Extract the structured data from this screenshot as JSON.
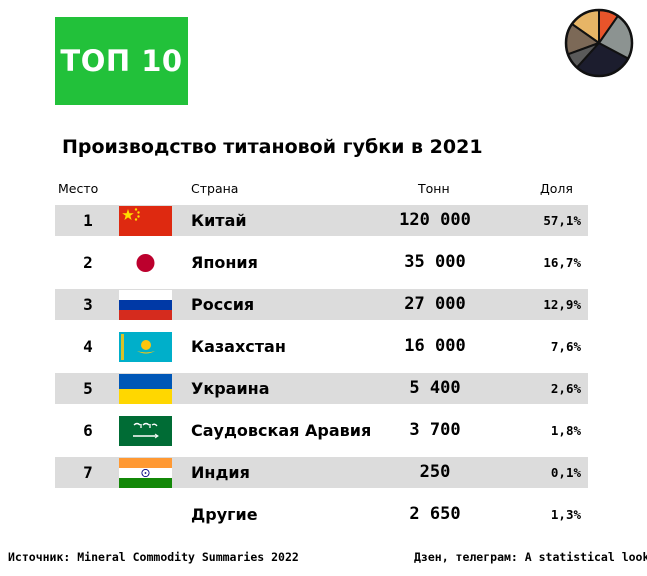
{
  "badge": {
    "label": "ТОП 10"
  },
  "logo_colors": [
    "#e8542a",
    "#e7b566",
    "#7c6957",
    "#5a5a5a",
    "#1c1d2e",
    "#8c9391"
  ],
  "chart_data": {
    "type": "table",
    "title": "Производство титановой губки в 2021",
    "columns": [
      "Место",
      "Страна",
      "Тонн",
      "Доля"
    ],
    "rows": [
      {
        "rank": "1",
        "country": "Китай",
        "flag": "china-flag-icon",
        "tons": "120 000",
        "share": "57,1%"
      },
      {
        "rank": "2",
        "country": "Япония",
        "flag": "japan-flag-icon",
        "tons": "35 000",
        "share": "16,7%"
      },
      {
        "rank": "3",
        "country": "Россия",
        "flag": "russia-flag-icon",
        "tons": "27 000",
        "share": "12,9%"
      },
      {
        "rank": "4",
        "country": "Казахстан",
        "flag": "kazakhstan-flag-icon",
        "tons": "16 000",
        "share": "7,6%"
      },
      {
        "rank": "5",
        "country": "Украина",
        "flag": "ukraine-flag-icon",
        "tons": "5 400",
        "share": "2,6%"
      },
      {
        "rank": "6",
        "country": "Саудовская Аравия",
        "flag": "saudi-arabia-flag-icon",
        "tons": "3 700",
        "share": "1,8%"
      },
      {
        "rank": "7",
        "country": "Индия",
        "flag": "india-flag-icon",
        "tons": "250",
        "share": "0,1%"
      },
      {
        "rank": "",
        "country": "Другие",
        "flag": "",
        "tons": "2 650",
        "share": "1,3%"
      }
    ]
  },
  "footer": {
    "source": "Источник: Mineral Commodity Summaries 2022",
    "credit": "Дзен, телеграм: A statistical look"
  }
}
